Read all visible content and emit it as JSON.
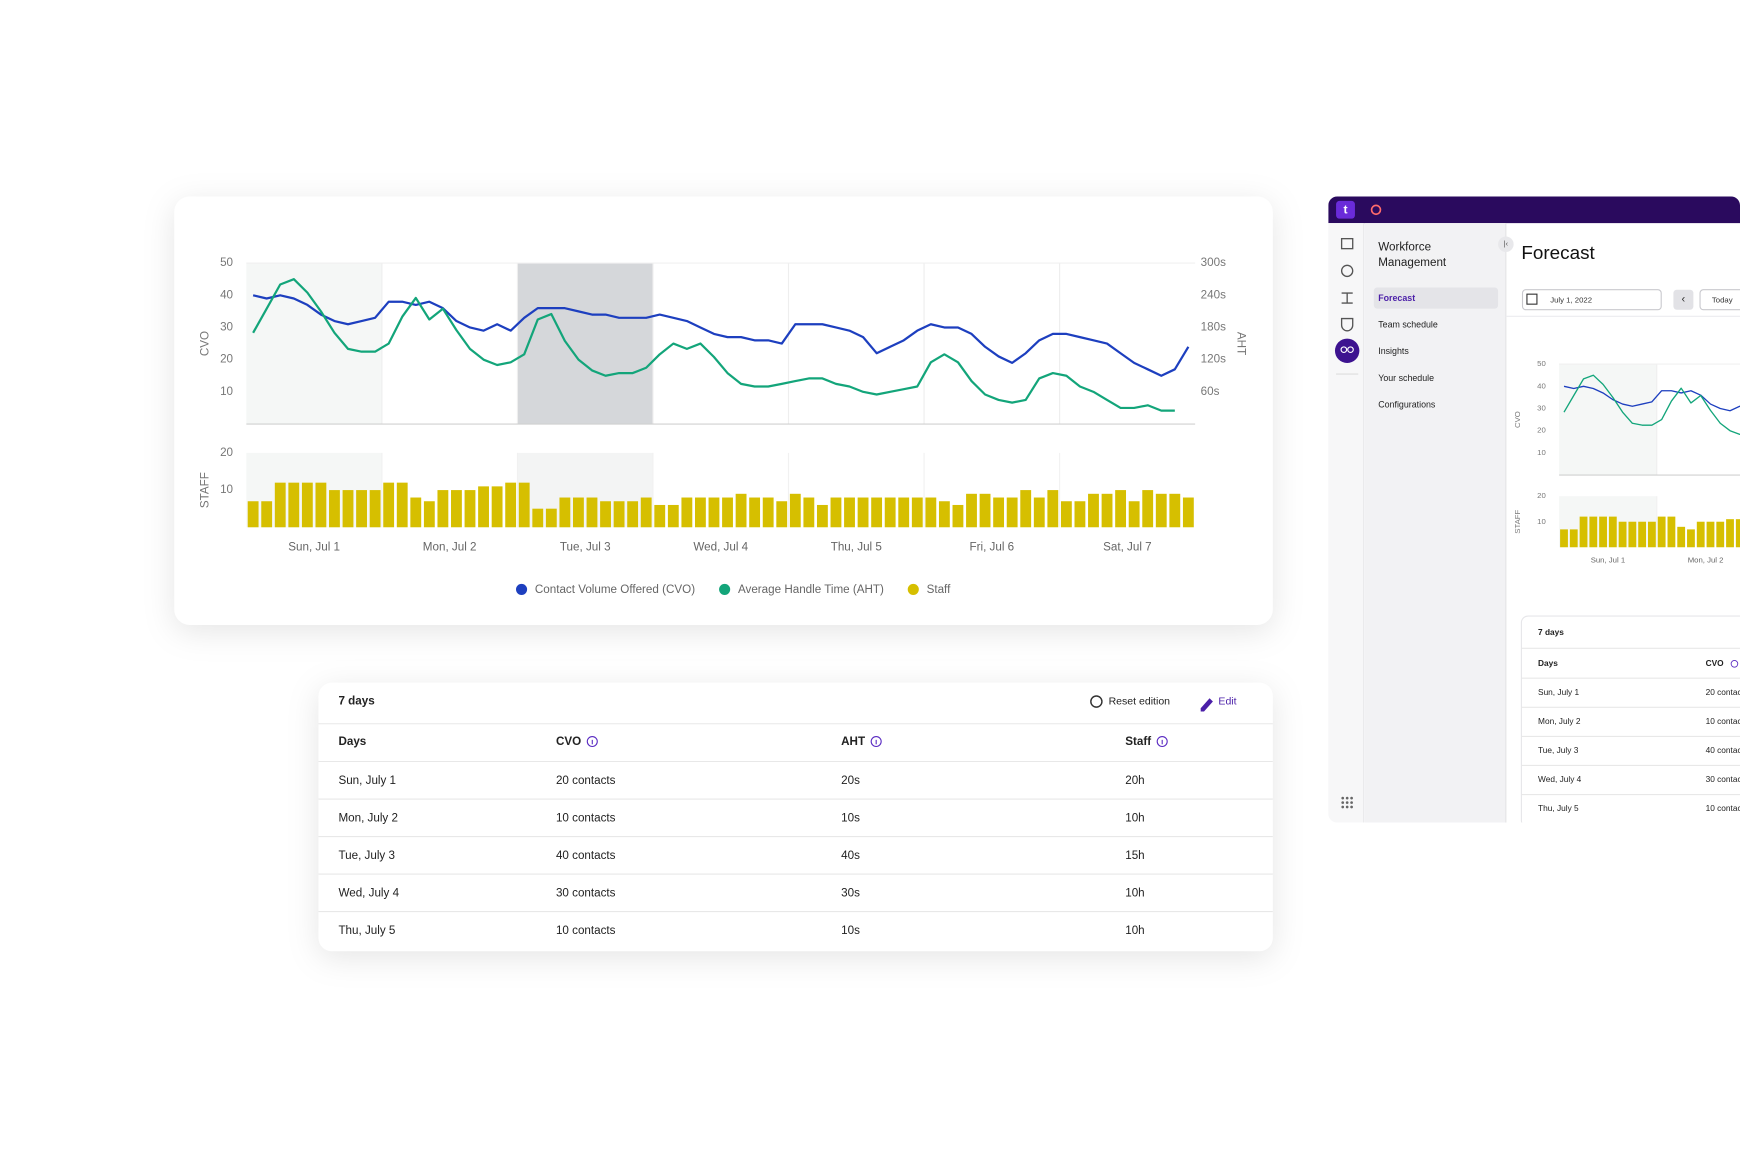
{
  "chart_data": [
    {
      "type": "line",
      "ylabel": "CVO",
      "y2label": "AHT",
      "ylim": [
        0,
        50
      ],
      "yticks": [
        10,
        20,
        30,
        40,
        50
      ],
      "y2lim": [
        0,
        300
      ],
      "y2ticks": [
        {
          "value": 60,
          "label": "60s"
        },
        {
          "value": 120,
          "label": "120s"
        },
        {
          "value": 180,
          "label": "180s"
        },
        {
          "value": 240,
          "label": "240s"
        },
        {
          "value": 300,
          "label": "300s"
        }
      ],
      "series": [
        {
          "name": "Contact Volume Offered (CVO)",
          "color": "#1d3fbf",
          "axis": "y",
          "values": [
            40,
            39,
            40,
            39,
            37,
            34,
            32,
            31,
            32,
            33,
            38,
            38,
            37,
            38,
            36,
            32,
            30,
            29,
            31,
            29,
            33,
            36,
            36,
            36,
            35,
            34,
            34,
            33,
            33,
            33,
            34,
            33,
            32,
            30,
            28,
            27,
            27,
            26,
            26,
            25,
            31,
            31,
            31,
            30,
            29,
            27,
            22,
            24,
            26,
            29,
            31,
            30,
            30,
            28,
            24,
            21,
            19,
            22,
            26,
            28,
            28,
            27,
            26,
            25,
            22,
            19,
            17,
            15,
            17,
            24
          ]
        },
        {
          "name": "Average Handle Time (AHT)",
          "color": "#13a57a",
          "axis": "y2",
          "values": [
            170,
            215,
            260,
            270,
            245,
            210,
            170,
            140,
            135,
            135,
            150,
            200,
            235,
            195,
            215,
            175,
            140,
            120,
            110,
            115,
            130,
            195,
            205,
            155,
            120,
            100,
            90,
            95,
            95,
            105,
            130,
            150,
            140,
            150,
            125,
            95,
            75,
            70,
            70,
            75,
            80,
            85,
            85,
            75,
            70,
            60,
            55,
            60,
            65,
            70,
            115,
            130,
            115,
            80,
            55,
            45,
            40,
            45,
            85,
            95,
            90,
            70,
            60,
            45,
            30,
            30,
            35,
            25,
            25,
            null
          ]
        }
      ]
    },
    {
      "type": "bar",
      "ylabel": "STAFF",
      "ylim": [
        0,
        20
      ],
      "yticks": [
        10,
        20
      ],
      "categories": [
        null,
        null,
        null,
        null,
        null,
        "Sun, Jul 1",
        null,
        null,
        null,
        null,
        null,
        null,
        null,
        null,
        null,
        "Mon, Jul 2",
        null,
        null,
        null,
        null,
        null,
        null,
        null,
        null,
        null,
        "Tue, Jul 3",
        null,
        null,
        null,
        null,
        null,
        null,
        null,
        null,
        null,
        "Wed, Jul 4",
        null,
        null,
        null,
        null,
        null,
        null,
        null,
        null,
        null,
        "Thu, Jul 5",
        null,
        null,
        null,
        null,
        null,
        null,
        null,
        null,
        null,
        "Fri, Jul 6",
        null,
        null,
        null,
        null,
        null,
        null,
        null,
        null,
        null,
        "Sat, Jul 7",
        null,
        null,
        null,
        null
      ],
      "series": [
        {
          "name": "Staff",
          "color": "#d6bf00",
          "values": [
            7,
            7,
            12,
            12,
            12,
            12,
            10,
            10,
            10,
            10,
            12,
            12,
            8,
            7,
            10,
            10,
            10,
            11,
            11,
            12,
            12,
            5,
            5,
            8,
            8,
            8,
            7,
            7,
            7,
            8,
            6,
            6,
            8,
            8,
            8,
            8,
            9,
            8,
            8,
            7,
            9,
            8,
            6,
            8,
            8,
            8,
            8,
            8,
            8,
            8,
            8,
            7,
            6,
            9,
            9,
            8,
            8,
            10,
            8,
            10,
            7,
            7,
            9,
            9,
            10,
            7,
            10,
            9,
            9,
            8
          ]
        }
      ]
    }
  ],
  "table": {
    "title": "7 days",
    "actions": [
      "Reset edition",
      "Edit"
    ],
    "columns": [
      "Days",
      "CVO",
      "AHT",
      "Staff"
    ],
    "rows": [
      [
        "Sun, July 1",
        "20 contacts",
        "20s",
        "20h"
      ],
      [
        "Mon, July 2",
        "10 contacts",
        "10s",
        "10h"
      ],
      [
        "Tue, July 3",
        "40 contacts",
        "40s",
        "15h"
      ],
      [
        "Wed, July 4",
        "30 contacts",
        "30s",
        "10h"
      ],
      [
        "Thu, July 5",
        "10 contacts",
        "10s",
        "10h"
      ]
    ]
  },
  "app": {
    "nav_title": [
      "Workforce",
      "Management"
    ],
    "nav": [
      "Forecast",
      "Team schedule",
      "Insights",
      "Your schedule",
      "Configurations"
    ],
    "page_title": "Forecast",
    "date": "July 1, 2022",
    "today": "Today"
  }
}
